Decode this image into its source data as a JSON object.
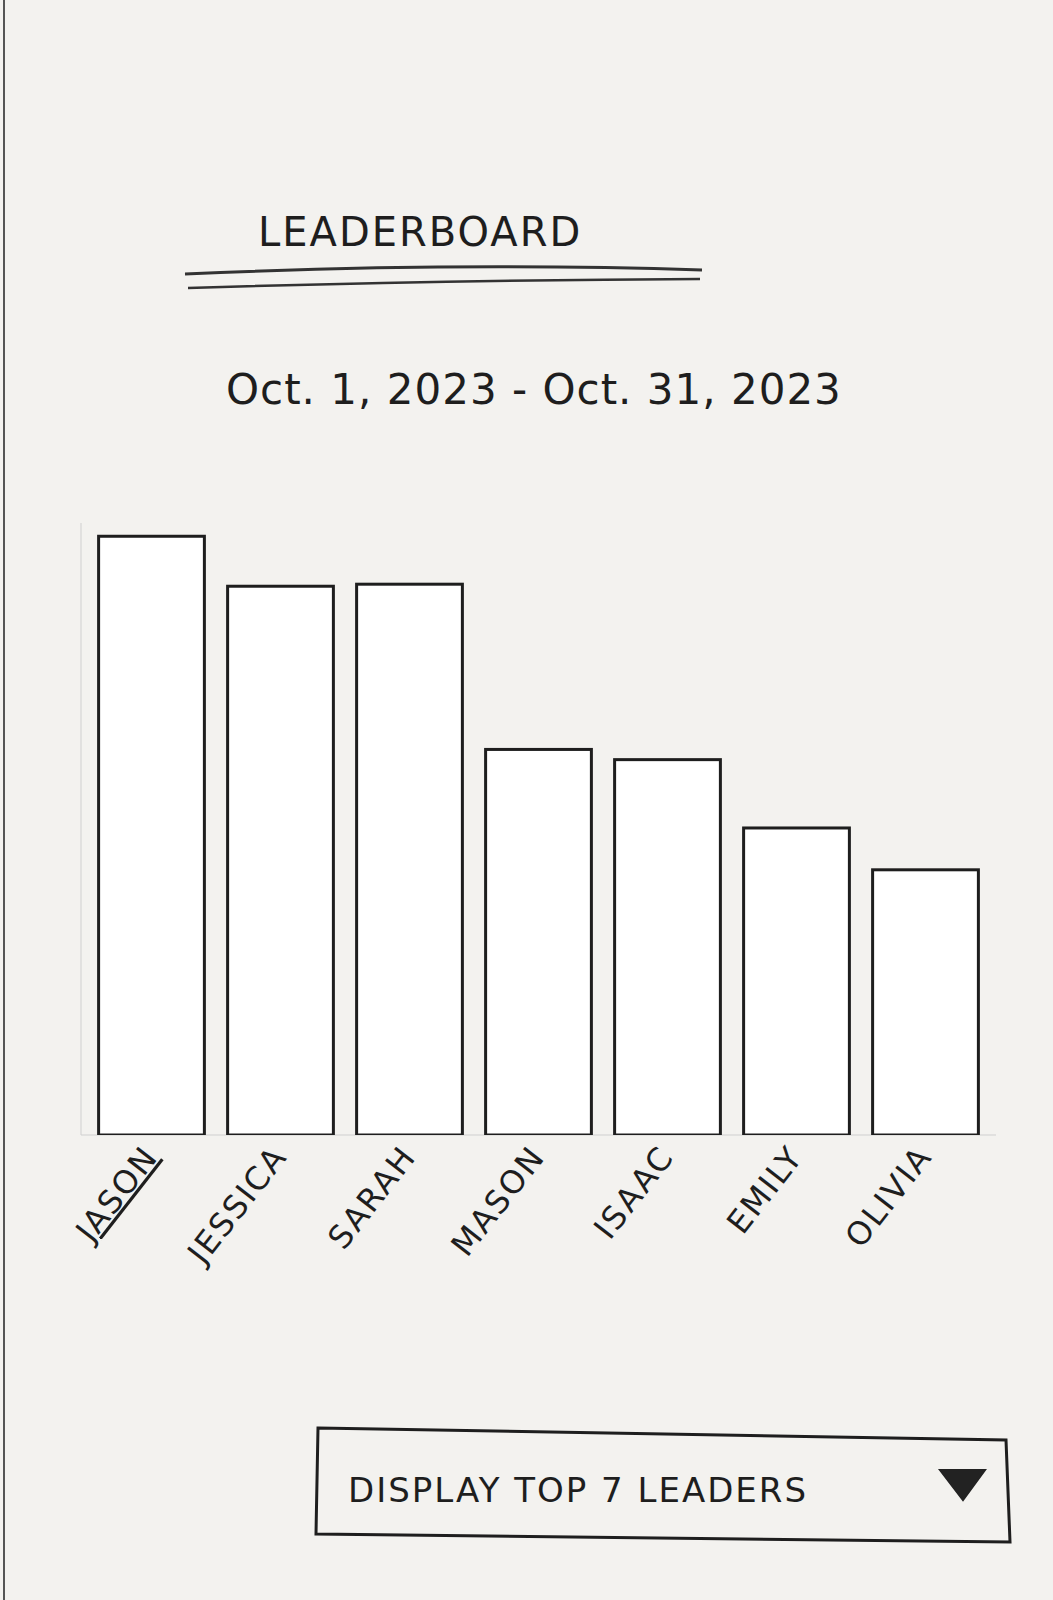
{
  "chart_data": {
    "type": "bar",
    "title": "LEADERBOARD",
    "subtitle": "Oct. 1, 2023 - Oct. 31, 2023",
    "categories": [
      "JASON",
      "JESSICA",
      "SARAH",
      "MASON",
      "ISAAC",
      "EMILY",
      "OLIVIA"
    ],
    "values": [
      587,
      538,
      540,
      378,
      368,
      301,
      260
    ],
    "color": "#ffffff",
    "ylim": [
      0,
      600
    ],
    "tick_labels": "x",
    "grid": false
  },
  "controls": {
    "display_dropdown": "DISPLAY TOP 7 LEADERS"
  }
}
